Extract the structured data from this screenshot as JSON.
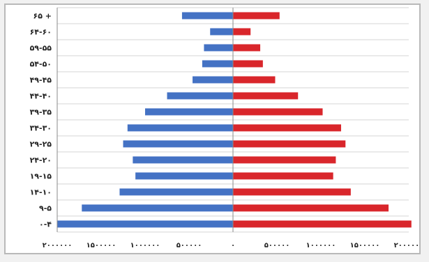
{
  "chart_data": {
    "type": "bar",
    "orientation": "horizontal",
    "layout": "population-pyramid",
    "title": "",
    "xlabel": "",
    "ylabel": "",
    "categories": [
      "۰-۴",
      "۹-۵",
      "۱۴-۱۰",
      "۱۹-۱۵",
      "۲۴-۲۰",
      "۲۹-۲۵",
      "۳۴-۳۰",
      "۳۹-۳۵",
      "۴۴-۴۰",
      "۴۹-۴۵",
      "۵۴-۵۰",
      "۵۹-۵۵",
      "۶۴-۶۰",
      "۶۵ +"
    ],
    "series": [
      {
        "side": "left",
        "color": "#4472c4",
        "values": [
          2000000,
          1720000,
          1290000,
          1110000,
          1140000,
          1250000,
          1200000,
          1000000,
          750000,
          460000,
          350000,
          330000,
          260000,
          580000
        ]
      },
      {
        "side": "right",
        "color": "#d9262b",
        "values": [
          2030000,
          1770000,
          1340000,
          1140000,
          1170000,
          1280000,
          1230000,
          1020000,
          740000,
          480000,
          340000,
          310000,
          200000,
          530000
        ]
      }
    ],
    "xlim": [
      -2000000,
      2000000
    ],
    "xticks": [
      -2000000,
      -1500000,
      -1000000,
      -500000,
      0,
      500000,
      1000000,
      1500000,
      2000000
    ],
    "xtick_labels": [
      "۲۰۰۰۰۰۰",
      "۱۵۰۰۰۰۰",
      "۱۰۰۰۰۰۰",
      "۵۰۰۰۰۰",
      "۰",
      "۵۰۰۰۰۰",
      "۱۰۰۰۰۰۰",
      "۱۵۰۰۰۰۰",
      "۲۰۰۰۰۰۰"
    ],
    "grid": true,
    "legend": "none"
  }
}
